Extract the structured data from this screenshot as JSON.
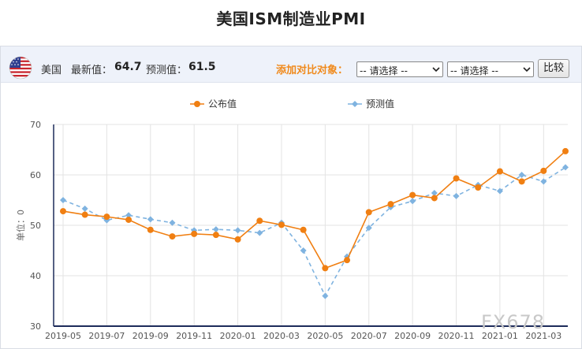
{
  "page": {
    "title": "美国ISM制造业PMI"
  },
  "toolbar": {
    "country": "美国",
    "latest_label": "最新值：",
    "latest_value": "64.7",
    "forecast_label": "预测值：",
    "forecast_value": "61.5",
    "compare_label": "添加对比对象：",
    "select_1": "-- 请选择 --",
    "select_2": "-- 请选择 --",
    "compare_button": "比较"
  },
  "colors": {
    "actual": "#f07f12",
    "forecast": "#7fb3e0",
    "grid": "#e3e3e3",
    "axis": "#1d2b5a"
  },
  "watermark": "FX678",
  "chart_data": {
    "type": "line",
    "title": "美国ISM制造业PMI",
    "ylabel": "单位：0",
    "ylim": [
      30,
      70
    ],
    "yticks": [
      30,
      40,
      50,
      60,
      70
    ],
    "grid": true,
    "legend_position": "top",
    "categories": [
      "2019-05",
      "2019-06",
      "2019-07",
      "2019-08",
      "2019-09",
      "2019-10",
      "2019-11",
      "2019-12",
      "2020-01",
      "2020-02",
      "2020-03",
      "2020-04",
      "2020-05",
      "2020-06",
      "2020-07",
      "2020-08",
      "2020-09",
      "2020-10",
      "2020-11",
      "2020-12",
      "2021-01",
      "2021-02",
      "2021-03",
      "2021-04"
    ],
    "xtick_labels": [
      "2019-05",
      "2019-07",
      "2019-09",
      "2019-11",
      "2020-01",
      "2020-03",
      "2020-05",
      "2020-07",
      "2020-09",
      "2020-11",
      "2021-01",
      "2021-03"
    ],
    "series": [
      {
        "name": "公布值",
        "values": [
          52.8,
          52.1,
          51.7,
          51.1,
          49.1,
          47.8,
          48.3,
          48.1,
          47.2,
          50.9,
          50.1,
          49.1,
          41.5,
          43.1,
          52.6,
          54.2,
          56.0,
          55.4,
          59.3,
          57.5,
          60.7,
          58.7,
          60.8,
          64.7
        ]
      },
      {
        "name": "预测值",
        "values": [
          55.0,
          53.3,
          51.0,
          52.0,
          51.2,
          50.5,
          49.0,
          49.2,
          49.0,
          48.5,
          50.5,
          45.0,
          36.0,
          43.8,
          49.5,
          53.6,
          54.8,
          56.4,
          55.8,
          58.0,
          56.8,
          60.0,
          58.7,
          61.5
        ]
      }
    ]
  }
}
